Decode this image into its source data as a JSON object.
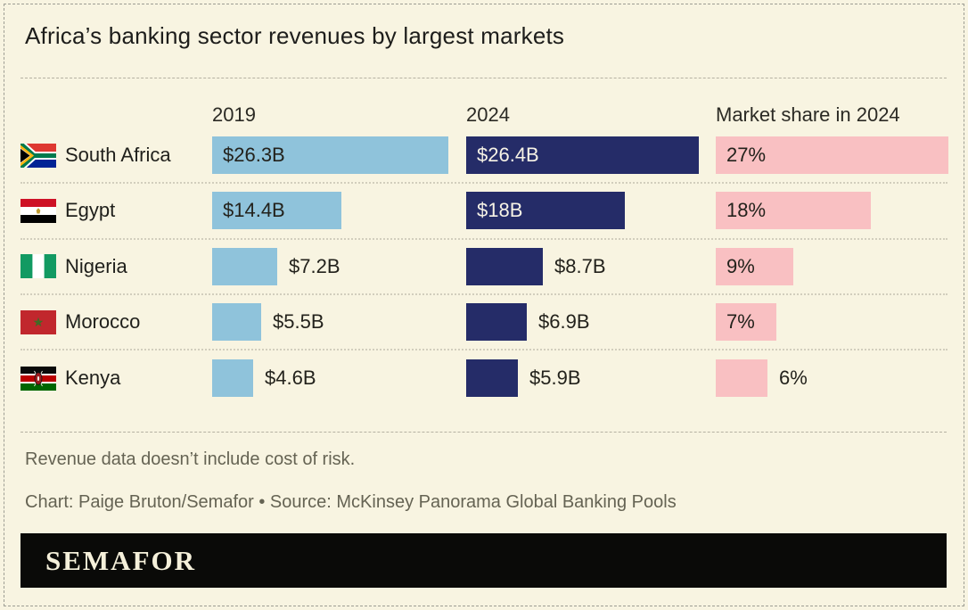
{
  "title": "Africa’s banking sector revenues by largest markets",
  "notes": {
    "footnote": "Revenue data doesn’t include cost of risk.",
    "credit": "Chart: Paige Bruton/Semafor • Source: McKinsey Panorama Global Banking Pools"
  },
  "brand": {
    "wordmark": "SEMAFOR"
  },
  "colors": {
    "background": "#f8f4e1",
    "bar_2019": "#8fc3db",
    "bar_2024": "#252c68",
    "bar_share": "#f9c0c2",
    "banner_bg": "#0a0a08",
    "banner_text": "#f5f0da",
    "text_dark": "#23221c",
    "text_on_navy": "#f7f3e6",
    "footnote_text": "#656353"
  },
  "chart_data": {
    "type": "bar",
    "title": "Africa’s banking sector revenues by largest markets",
    "categories": [
      "South Africa",
      "Egypt",
      "Nigeria",
      "Morocco",
      "Kenya"
    ],
    "flags": [
      "south-africa",
      "egypt",
      "nigeria",
      "morocco",
      "kenya"
    ],
    "series": [
      {
        "name": "2019",
        "unit": "USD billions",
        "values": [
          26.3,
          14.4,
          7.2,
          5.5,
          4.6
        ],
        "labels": [
          "$26.3B",
          "$14.4B",
          "$7.2B",
          "$5.5B",
          "$4.6B"
        ],
        "color": "#8fc3db",
        "axis_max": 26.4
      },
      {
        "name": "2024",
        "unit": "USD billions",
        "values": [
          26.4,
          18,
          8.7,
          6.9,
          5.9
        ],
        "labels": [
          "$26.4B",
          "$18B",
          "$8.7B",
          "$6.9B",
          "$5.9B"
        ],
        "color": "#252c68",
        "axis_max": 26.4
      },
      {
        "name": "Market share in 2024",
        "unit": "%",
        "values": [
          27,
          18,
          9,
          7,
          6
        ],
        "labels": [
          "27%",
          "18%",
          "9%",
          "7%",
          "6%"
        ],
        "color": "#f9c0c2",
        "axis_max": 27
      }
    ],
    "layout": {
      "legend": "column headers",
      "grid": false,
      "bar_orientation": "horizontal"
    }
  }
}
